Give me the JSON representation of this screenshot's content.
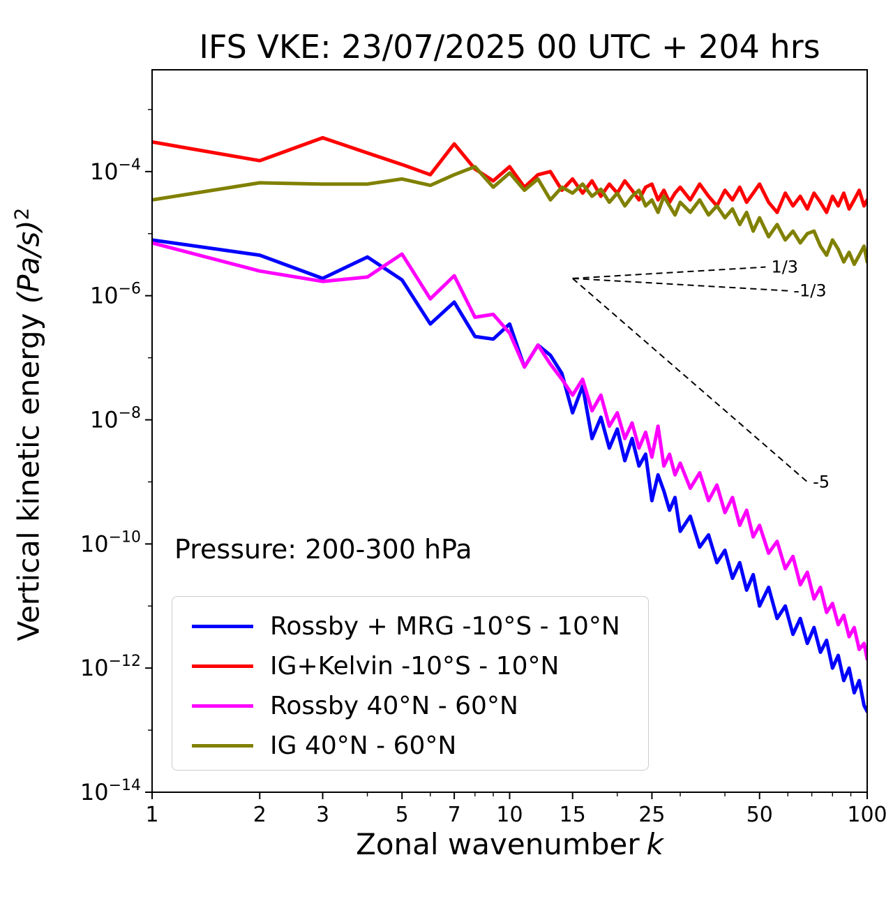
{
  "title": "IFS VKE: 23/07/2025 00 UTC + 204 hrs",
  "annotation": {
    "pressure_label": "Pressure: 200-300 hPa"
  },
  "axes": {
    "xlabel_text": "Zonal wavenumber",
    "xlabel_var": "k",
    "ylabel_text": "Vertical kinetic energy ",
    "ylabel_unit": "(Pa/s)",
    "ylabel_sup": "2",
    "x_ticks": [
      1,
      2,
      3,
      5,
      7,
      10,
      15,
      25,
      50,
      100
    ],
    "x_minor_ticks": [
      4,
      6,
      8,
      9,
      20,
      30,
      40,
      60,
      70,
      80,
      90
    ],
    "y_tick_exponents": [
      -4,
      -6,
      -8,
      -10,
      -12,
      -14
    ],
    "y_minor_tick_exponents": [
      -3,
      -5,
      -7,
      -9,
      -11,
      -13
    ],
    "xlim": [
      1,
      100
    ],
    "ylim_log10": [
      -14,
      -2.36
    ],
    "x_scale": "log",
    "y_scale": "log"
  },
  "chart_data": {
    "type": "line",
    "title": "IFS VKE: 23/07/2025 00 UTC + 204 hrs",
    "xlabel": "Zonal wavenumber k",
    "ylabel": "Vertical kinetic energy (Pa/s)^2",
    "grid": false,
    "legend_position": "lower left",
    "x": [
      1,
      2,
      3,
      4,
      5,
      6,
      7,
      8,
      9,
      10,
      11,
      12,
      13,
      14,
      15,
      16,
      17,
      18,
      19,
      20,
      21,
      22,
      23,
      24,
      25,
      26,
      27,
      28,
      29,
      30,
      32,
      34,
      36,
      38,
      40,
      42,
      44,
      46,
      48,
      50,
      53,
      56,
      59,
      62,
      65,
      68,
      71,
      74,
      77,
      80,
      83,
      86,
      89,
      92,
      95,
      98,
      100
    ],
    "series": [
      {
        "name": "Rossby + MRG -10°S - 10°N",
        "color": "#0000ff",
        "values": [
          7.9e-06,
          4.5e-06,
          1.9e-06,
          4.2e-06,
          1.8e-06,
          3.5e-07,
          7.9e-07,
          2.2e-07,
          2e-07,
          3.5e-07,
          7.1e-08,
          1.6e-07,
          1.1e-07,
          5.6e-08,
          1.3e-08,
          3.5e-08,
          5e-09,
          1.1e-08,
          3.5e-09,
          7.1e-09,
          2.2e-09,
          5e-09,
          1.8e-09,
          2.8e-09,
          5e-10,
          1.3e-09,
          7.1e-10,
          3.5e-10,
          5.6e-10,
          1.6e-10,
          2.8e-10,
          8.9e-11,
          1.4e-10,
          5e-11,
          7.9e-11,
          2.8e-11,
          5e-11,
          1.8e-11,
          3.2e-11,
          1e-11,
          2e-11,
          6.3e-12,
          1e-11,
          3.5e-12,
          6.3e-12,
          2.5e-12,
          4.5e-12,
          1.8e-12,
          2.8e-12,
          1e-12,
          1.6e-12,
          6.3e-13,
          1e-12,
          4e-13,
          6.3e-13,
          2.5e-13,
          2e-13
        ]
      },
      {
        "name": "IG+Kelvin -10°S - 10°N",
        "color": "#ff0000",
        "values": [
          0.0003,
          0.00015,
          0.00035,
          0.0002,
          0.00013,
          8.9e-05,
          0.00028,
          0.00011,
          7.1e-05,
          0.00012,
          5.6e-05,
          8.9e-05,
          0.0001,
          5e-05,
          7.6e-05,
          4.5e-05,
          7.1e-05,
          4e-05,
          6.3e-05,
          4.5e-05,
          7.1e-05,
          5e-05,
          3.5e-05,
          5.6e-05,
          6.3e-05,
          3.5e-05,
          5e-05,
          3.2e-05,
          4.5e-05,
          5.6e-05,
          3.5e-05,
          6.3e-05,
          4e-05,
          2.8e-05,
          5e-05,
          3.5e-05,
          5.6e-05,
          3.2e-05,
          4.5e-05,
          6.3e-05,
          3.2e-05,
          2.2e-05,
          4.5e-05,
          2.8e-05,
          4e-05,
          2.5e-05,
          4.5e-05,
          3.2e-05,
          2.2e-05,
          4e-05,
          2.8e-05,
          4.5e-05,
          2.5e-05,
          3.5e-05,
          5e-05,
          2.8e-05,
          3.5e-05
        ]
      },
      {
        "name": "Rossby 40°N - 60°N",
        "color": "#ff00ff",
        "values": [
          7.1e-06,
          2.5e-06,
          1.7e-06,
          2e-06,
          4.7e-06,
          8.9e-07,
          2.1e-06,
          4.5e-07,
          5e-07,
          2.5e-07,
          7.1e-08,
          1.6e-07,
          7.9e-08,
          4.5e-08,
          2.5e-08,
          4.5e-08,
          1.4e-08,
          2.5e-08,
          7.9e-09,
          1.3e-08,
          5e-09,
          8.9e-09,
          3.5e-09,
          6.3e-09,
          2.5e-09,
          7.9e-09,
          1.8e-09,
          2.8e-09,
          1.3e-09,
          2e-09,
          7.9e-10,
          1.4e-09,
          5e-10,
          8.9e-10,
          3.2e-10,
          5.6e-10,
          2e-10,
          3.5e-10,
          1.3e-10,
          2e-10,
          7.1e-11,
          1.1e-10,
          4e-11,
          6.3e-11,
          2.2e-11,
          3.5e-11,
          1.3e-11,
          2e-11,
          7.9e-12,
          1.1e-11,
          5e-12,
          7.1e-12,
          3.2e-12,
          4.5e-12,
          2e-12,
          2.5e-12,
          1.4e-12
        ]
      },
      {
        "name": "IG 40°N - 60°N",
        "color": "#808000",
        "values": [
          3.5e-05,
          6.6e-05,
          6.3e-05,
          6.3e-05,
          7.6e-05,
          6e-05,
          8.9e-05,
          0.00012,
          5.6e-05,
          9.5e-05,
          5e-05,
          7.6e-05,
          3.5e-05,
          5.6e-05,
          4.5e-05,
          6.3e-05,
          4e-05,
          5.2e-05,
          3.2e-05,
          4.5e-05,
          2.8e-05,
          4e-05,
          5e-05,
          2.8e-05,
          3.5e-05,
          2.2e-05,
          4e-05,
          2.8e-05,
          2e-05,
          3.2e-05,
          2.2e-05,
          3.5e-05,
          2e-05,
          2.8e-05,
          1.8e-05,
          2.5e-05,
          1.4e-05,
          2.2e-05,
          1.1e-05,
          1.8e-05,
          8.9e-06,
          1.4e-05,
          7.9e-06,
          1.1e-05,
          7.1e-06,
          1e-05,
          1.1e-05,
          6.3e-06,
          4.5e-06,
          7.9e-06,
          5.6e-06,
          3.5e-06,
          5e-06,
          3.2e-06,
          4.5e-06,
          6.3e-06,
          3.5e-06
        ]
      }
    ],
    "reference_lines": [
      {
        "label": "1/3",
        "slope": 0.333,
        "points": [
          [
            15,
            1.9e-06
          ],
          [
            52,
            2.9e-06
          ]
        ]
      },
      {
        "label": "-1/3",
        "slope": -0.333,
        "points": [
          [
            15,
            1.9e-06
          ],
          [
            60,
            1.2e-06
          ]
        ]
      },
      {
        "label": "-5",
        "slope": -5,
        "points": [
          [
            15,
            1.9e-06
          ],
          [
            68,
            1e-09
          ]
        ]
      }
    ]
  }
}
